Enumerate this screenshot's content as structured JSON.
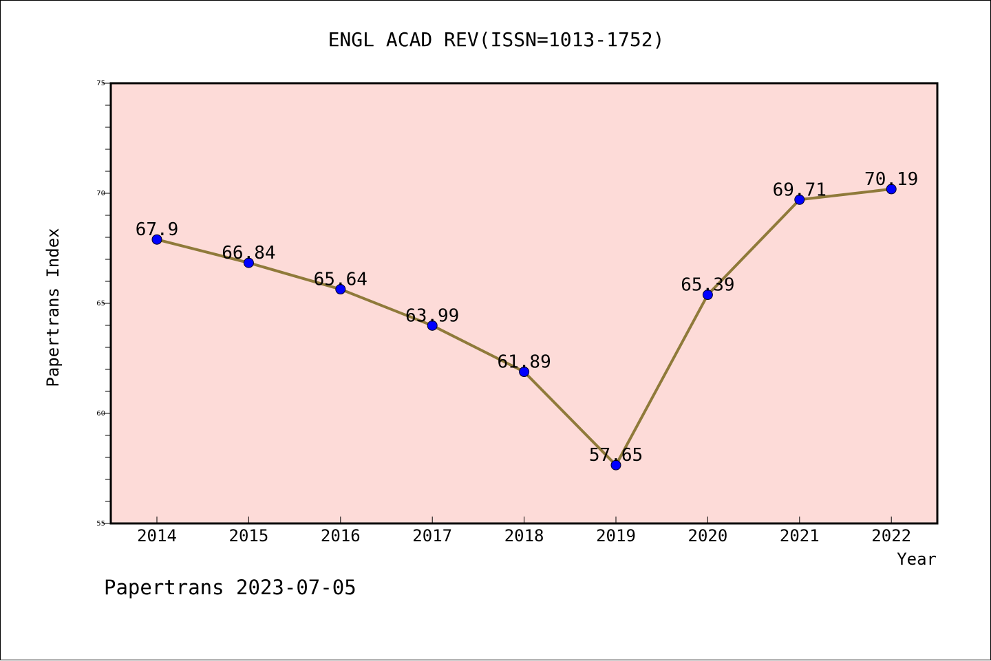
{
  "chart_data": {
    "type": "line",
    "title": "ENGL ACAD REV(ISSN=1013-1752)",
    "xlabel": "Year",
    "ylabel": "Papertrans Index",
    "categories": [
      "2014",
      "2015",
      "2016",
      "2017",
      "2018",
      "2019",
      "2020",
      "2021",
      "2022"
    ],
    "values": [
      67.9,
      66.84,
      65.64,
      63.99,
      61.89,
      57.65,
      65.39,
      69.71,
      70.19
    ],
    "data_labels": [
      "67.9",
      "66.84",
      "65.64",
      "63.99",
      "61.89",
      "57.65",
      "65.39",
      "69.71",
      "70.19"
    ],
    "ylim": [
      55,
      75
    ],
    "yticks": [
      "55",
      "60",
      "65",
      "70",
      "75"
    ],
    "grid": false,
    "colors": {
      "plot_background": "#fddbd8",
      "line": "#8f7a3a",
      "marker": "#0000ff"
    }
  },
  "footer": "Papertrans 2023-07-05"
}
